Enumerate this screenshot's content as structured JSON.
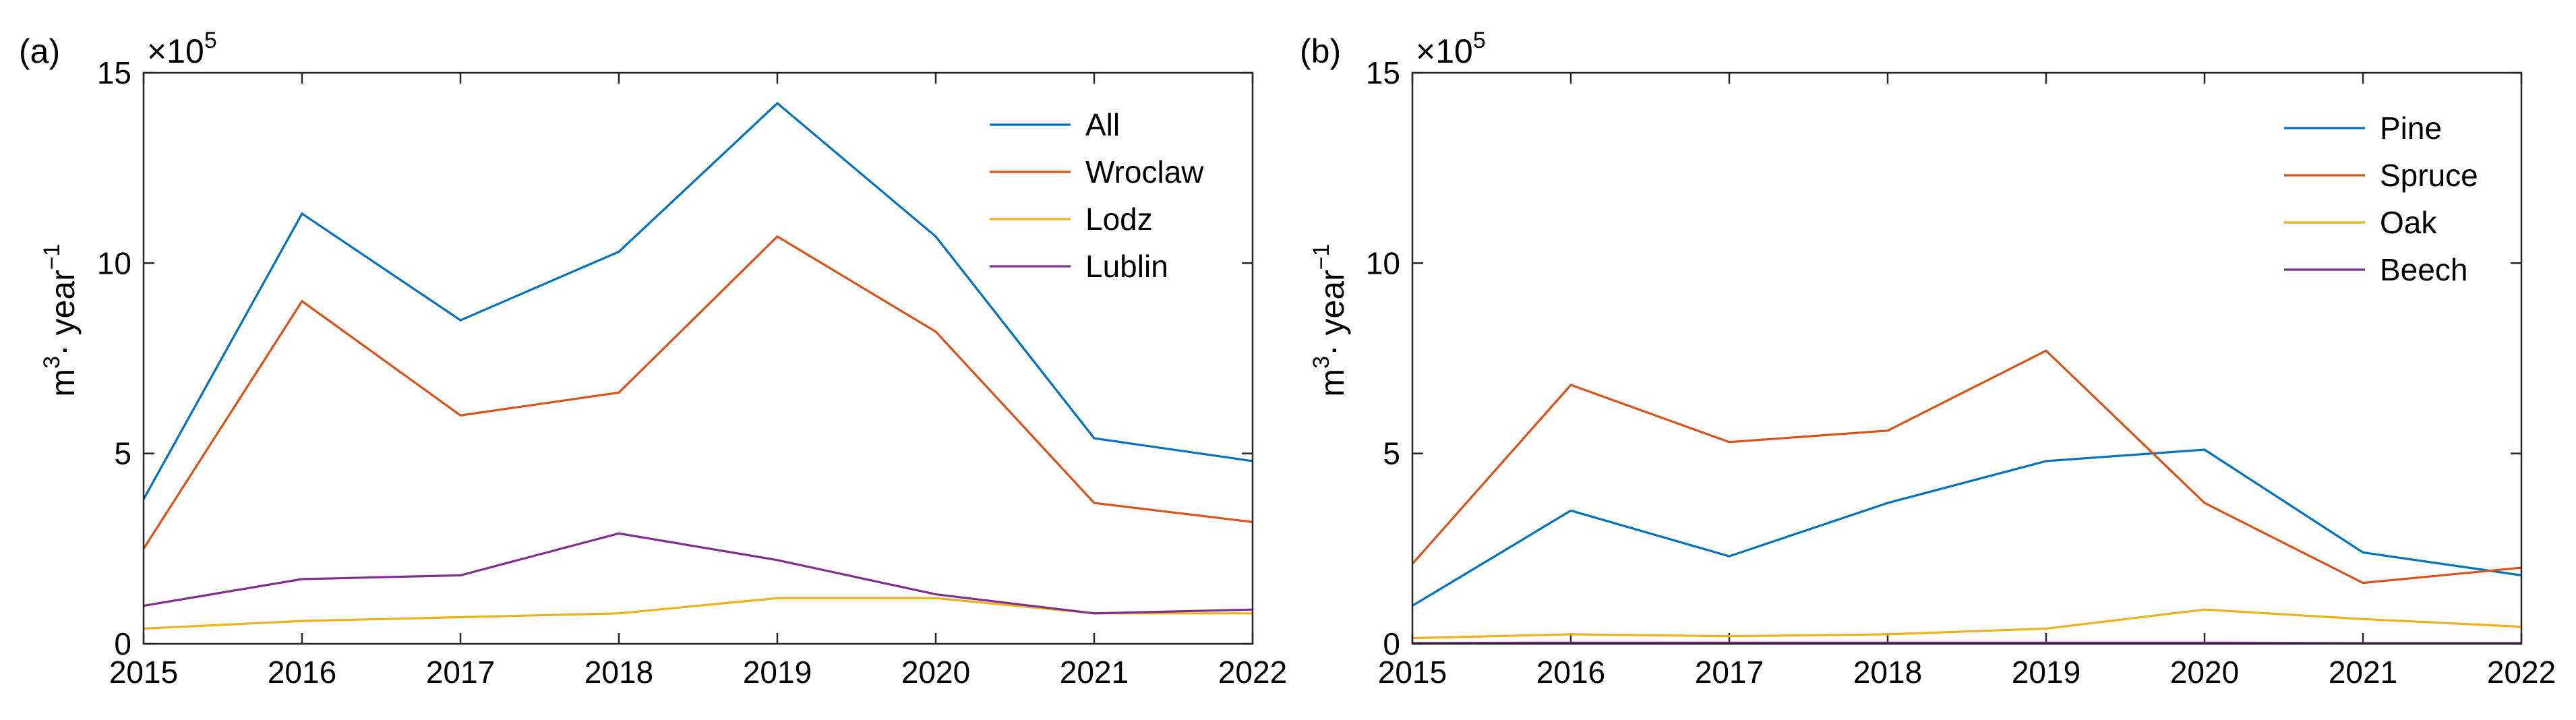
{
  "chart_data": [
    {
      "type": "line",
      "panel_label": "(a)",
      "multiplier": "×10",
      "multiplier_exp": "5",
      "ylabel_base": "m",
      "ylabel_sup": "3",
      "ylabel_mid": "· year",
      "ylabel_sup2": "−1",
      "x": [
        2015,
        2016,
        2017,
        2018,
        2019,
        2020,
        2021,
        2022
      ],
      "xtick_labels": [
        "2015",
        "2016",
        "2017",
        "2018",
        "2019",
        "2020",
        "2021",
        "2022"
      ],
      "ytick_labels": [
        "0",
        "5",
        "10",
        "15"
      ],
      "yticks": [
        0,
        5,
        10,
        15
      ],
      "xlim": [
        2015,
        2022
      ],
      "ylim": [
        0,
        15
      ],
      "legend_position": "top-right",
      "series": [
        {
          "name": "All",
          "color": "#0072BD",
          "values": [
            3.8,
            11.3,
            8.5,
            10.3,
            14.2,
            10.7,
            5.4,
            4.8
          ]
        },
        {
          "name": "Wroclaw",
          "color": "#D95319",
          "values": [
            2.5,
            9.0,
            6.0,
            6.6,
            10.7,
            8.2,
            3.7,
            3.2
          ]
        },
        {
          "name": "Lodz",
          "color": "#EDB120",
          "values": [
            0.4,
            0.6,
            0.7,
            0.8,
            1.2,
            1.2,
            0.8,
            0.8
          ]
        },
        {
          "name": "Lublin",
          "color": "#7E2F8E",
          "values": [
            1.0,
            1.7,
            1.8,
            2.9,
            2.2,
            1.3,
            0.8,
            0.9
          ]
        }
      ]
    },
    {
      "type": "line",
      "panel_label": "(b)",
      "multiplier": "×10",
      "multiplier_exp": "5",
      "ylabel_base": "m",
      "ylabel_sup": "3",
      "ylabel_mid": "· year",
      "ylabel_sup2": "−1",
      "x": [
        2015,
        2016,
        2017,
        2018,
        2019,
        2020,
        2021,
        2022
      ],
      "xtick_labels": [
        "2015",
        "2016",
        "2017",
        "2018",
        "2019",
        "2020",
        "2021",
        "2022"
      ],
      "ytick_labels": [
        "0",
        "5",
        "10",
        "15"
      ],
      "yticks": [
        0,
        5,
        10,
        15
      ],
      "xlim": [
        2015,
        2022
      ],
      "ylim": [
        0,
        15
      ],
      "legend_position": "top-right",
      "series": [
        {
          "name": "Pine",
          "color": "#0072BD",
          "values": [
            1.0,
            3.5,
            2.3,
            3.7,
            4.8,
            5.1,
            2.4,
            1.8
          ]
        },
        {
          "name": "Spruce",
          "color": "#D95319",
          "values": [
            2.1,
            6.8,
            5.3,
            5.6,
            7.7,
            3.7,
            1.6,
            2.0
          ]
        },
        {
          "name": "Oak",
          "color": "#EDB120",
          "values": [
            0.15,
            0.25,
            0.2,
            0.25,
            0.4,
            0.9,
            0.65,
            0.45
          ]
        },
        {
          "name": "Beech",
          "color": "#7E2F8E",
          "values": [
            0.02,
            0.03,
            0.03,
            0.03,
            0.03,
            0.03,
            0.02,
            0.02
          ]
        }
      ]
    }
  ]
}
